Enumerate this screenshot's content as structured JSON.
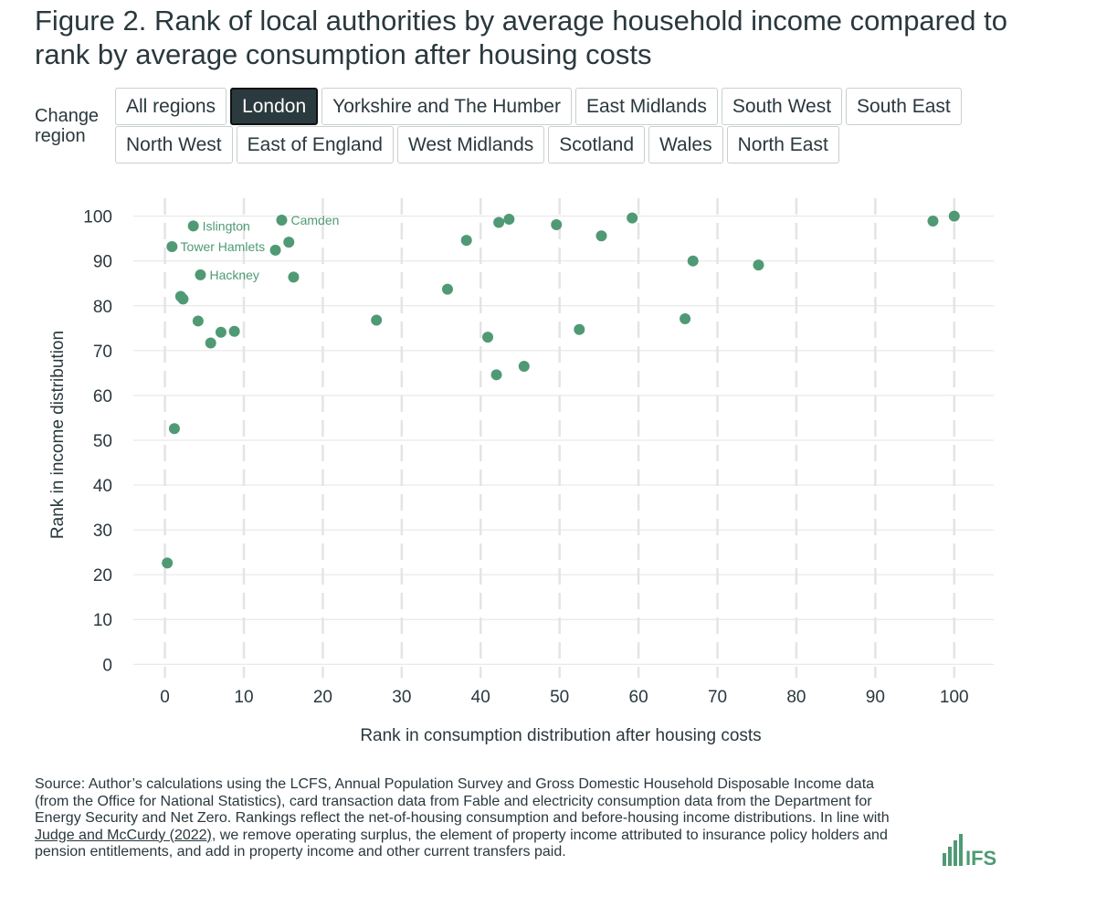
{
  "title": "Figure 2. Rank of local authorities by average household income compared to rank by average consumption after housing costs",
  "region_selector": {
    "label": "Change region",
    "active": "London",
    "row1": [
      "All regions",
      "London",
      "Yorkshire and The Humber",
      "East Midlands",
      "South West",
      "South East"
    ],
    "row2": [
      "North West",
      "East of England",
      "West Midlands",
      "Scotland",
      "Wales",
      "North East"
    ]
  },
  "colors": {
    "point": "#4f9a74",
    "label": "#4f9a74",
    "grid": "#e4e4e4",
    "text": "#2a383d",
    "active_button": "#2b3a3f"
  },
  "chart_data": {
    "type": "scatter",
    "xlabel": "Rank in consumption distribution after housing costs",
    "ylabel": "Rank in income distribution",
    "xlim": [
      -4,
      105
    ],
    "ylim": [
      -3,
      104
    ],
    "xticks": [
      0,
      10,
      20,
      30,
      40,
      50,
      60,
      70,
      80,
      90,
      100
    ],
    "yticks": [
      0,
      10,
      20,
      30,
      40,
      50,
      60,
      70,
      80,
      90,
      100
    ],
    "grid": true,
    "points": [
      {
        "x": 0.3,
        "y": 22.6
      },
      {
        "x": 1.2,
        "y": 52.6
      },
      {
        "x": 0.9,
        "y": 93.2
      },
      {
        "x": 2.0,
        "y": 82.1
      },
      {
        "x": 2.3,
        "y": 81.5
      },
      {
        "x": 3.6,
        "y": 97.8,
        "label": "Islington"
      },
      {
        "x": 4.2,
        "y": 76.6
      },
      {
        "x": 4.5,
        "y": 86.9,
        "label": "Hackney"
      },
      {
        "x": 5.8,
        "y": 71.7
      },
      {
        "x": 7.1,
        "y": 74.1
      },
      {
        "x": 8.8,
        "y": 74.3
      },
      {
        "x": 14.0,
        "y": 92.4,
        "label": "Tower Hamlets"
      },
      {
        "x": 14.8,
        "y": 99.1,
        "label": "Camden"
      },
      {
        "x": 15.7,
        "y": 94.2
      },
      {
        "x": 16.3,
        "y": 86.4
      },
      {
        "x": 26.8,
        "y": 76.8
      },
      {
        "x": 35.8,
        "y": 83.7
      },
      {
        "x": 38.2,
        "y": 94.6
      },
      {
        "x": 40.9,
        "y": 73.0
      },
      {
        "x": 42.0,
        "y": 64.6
      },
      {
        "x": 42.3,
        "y": 98.6
      },
      {
        "x": 43.6,
        "y": 99.3
      },
      {
        "x": 45.5,
        "y": 66.5
      },
      {
        "x": 49.6,
        "y": 98.1
      },
      {
        "x": 52.5,
        "y": 74.7
      },
      {
        "x": 55.3,
        "y": 95.6
      },
      {
        "x": 59.2,
        "y": 99.6
      },
      {
        "x": 65.9,
        "y": 77.1
      },
      {
        "x": 66.9,
        "y": 90.0
      },
      {
        "x": 75.2,
        "y": 89.1
      },
      {
        "x": 97.3,
        "y": 98.9
      },
      {
        "x": 100.0,
        "y": 100.0
      }
    ]
  },
  "source": {
    "before": "Source: Author’s calculations using the LCFS, Annual Population Survey and Gross Domestic Household Disposable Income data (from the Office for National Statistics), card transaction data from Fable and electricity consumption data from the Department for Energy Security and Net Zero. Rankings reflect the net-of-housing consumption and before-housing income distributions. In line with ",
    "link": "Judge and McCurdy (2022)",
    "after": ", we remove operating surplus, the element of property income attributed to insurance policy holders and pension entitlements, and add in property income and other current transfers paid."
  },
  "logo": {
    "text": "IFS",
    "icon": "bar-chart-icon"
  }
}
